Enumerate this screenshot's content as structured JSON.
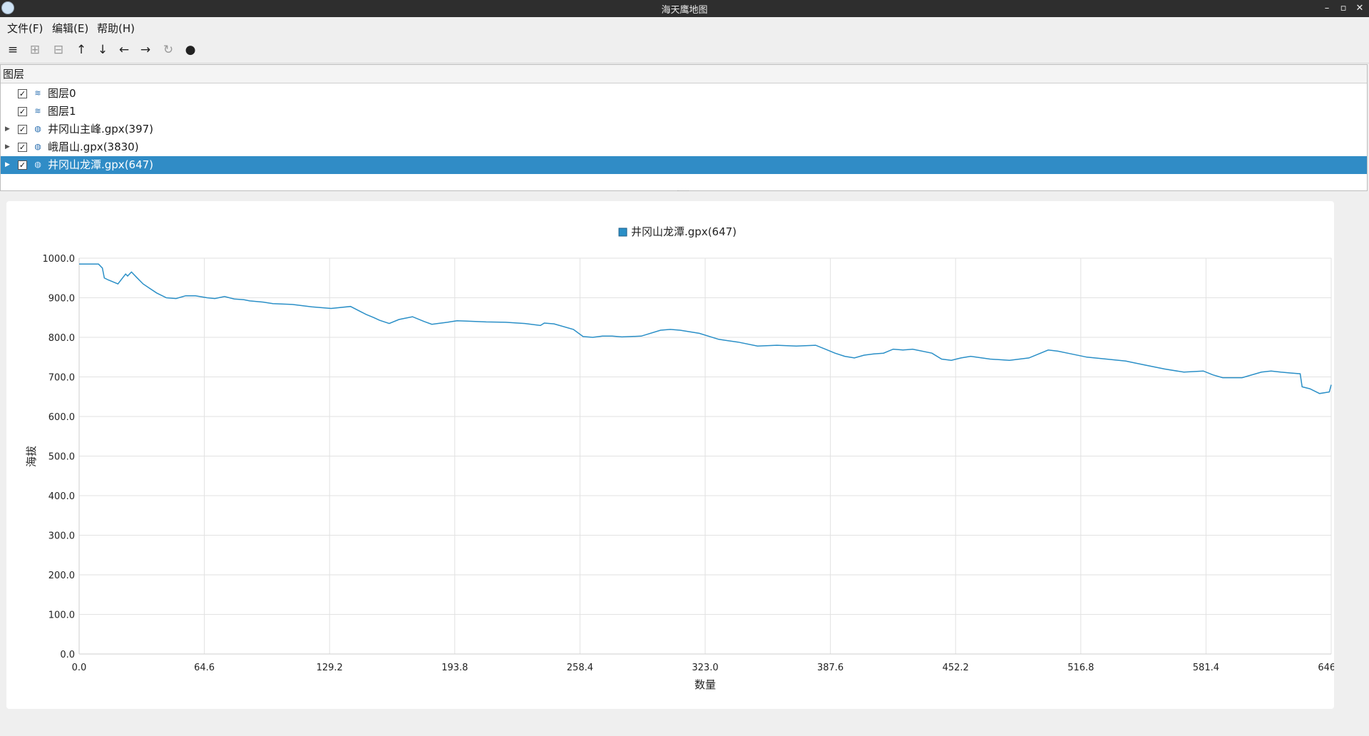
{
  "window": {
    "title": "海天鹰地图",
    "minimize": "–",
    "maximize": "▫",
    "close": "✕"
  },
  "menu": {
    "file": "文件(F)",
    "edit": "编辑(E)",
    "help": "帮助(H)"
  },
  "toolbar": {
    "menu_glyph": "≡",
    "add_glyph": "⊞",
    "remove_glyph": "⊟",
    "up_glyph": "↑",
    "down_glyph": "↓",
    "left_glyph": "←",
    "right_glyph": "→",
    "refresh_glyph": "↻",
    "dot_glyph": "●"
  },
  "layers": {
    "header": "图层",
    "items": [
      {
        "label": "图层0",
        "checked": true,
        "expandable": false,
        "icon": "layer-stack-icon"
      },
      {
        "label": "图层1",
        "checked": true,
        "expandable": false,
        "icon": "layer-stack-icon"
      },
      {
        "label": "井冈山主峰.gpx(397)",
        "checked": true,
        "expandable": true,
        "icon": "track-globe-icon"
      },
      {
        "label": "峨眉山.gpx(3830)",
        "checked": true,
        "expandable": true,
        "icon": "track-globe-icon"
      },
      {
        "label": "井冈山龙潭.gpx(647)",
        "checked": true,
        "expandable": true,
        "icon": "track-globe-icon",
        "selected": true
      }
    ]
  },
  "chart_data": {
    "type": "line",
    "legend_position": "top-center",
    "grid": true,
    "xlabel": "数量",
    "ylabel": "海拔",
    "xlim": [
      0,
      646
    ],
    "ylim": [
      0,
      1000
    ],
    "x_ticks": [
      "0.0",
      "64.6",
      "129.2",
      "193.8",
      "258.4",
      "323.0",
      "387.6",
      "452.2",
      "516.8",
      "581.4",
      "646.0"
    ],
    "y_ticks": [
      "0.0",
      "100.0",
      "200.0",
      "300.0",
      "400.0",
      "500.0",
      "600.0",
      "700.0",
      "800.0",
      "900.0",
      "1000.0"
    ],
    "series_color": "#2a8fc7",
    "series": [
      {
        "name": "井冈山龙潭.gpx(647)",
        "x": [
          0,
          10,
          12,
          13,
          15,
          20,
          24,
          25,
          27,
          30,
          33,
          36,
          40,
          45,
          50,
          55,
          60,
          66,
          70,
          75,
          80,
          85,
          88,
          95,
          100,
          110,
          120,
          130,
          140,
          148,
          152,
          155,
          160,
          165,
          172,
          178,
          182,
          185,
          190,
          195,
          200,
          210,
          220,
          230,
          238,
          240,
          245,
          255,
          260,
          265,
          270,
          275,
          280,
          290,
          300,
          305,
          310,
          320,
          330,
          340,
          350,
          360,
          370,
          380,
          385,
          390,
          395,
          400,
          405,
          410,
          415,
          420,
          425,
          430,
          440,
          445,
          450,
          455,
          460,
          470,
          480,
          490,
          500,
          505,
          510,
          520,
          530,
          540,
          550,
          560,
          570,
          580,
          585,
          590,
          600,
          610,
          615,
          620,
          625,
          630,
          631,
          635,
          640,
          645,
          646
        ],
        "y": [
          985,
          985,
          975,
          950,
          945,
          935,
          960,
          955,
          965,
          950,
          935,
          925,
          912,
          900,
          898,
          905,
          905,
          900,
          898,
          903,
          897,
          895,
          892,
          889,
          885,
          883,
          877,
          873,
          878,
          858,
          850,
          843,
          835,
          845,
          852,
          840,
          833,
          835,
          838,
          842,
          841,
          839,
          838,
          835,
          830,
          836,
          834,
          820,
          802,
          800,
          803,
          803,
          801,
          803,
          818,
          820,
          818,
          810,
          795,
          788,
          778,
          780,
          778,
          780,
          770,
          760,
          752,
          748,
          755,
          758,
          760,
          770,
          768,
          770,
          760,
          745,
          742,
          748,
          752,
          745,
          742,
          748,
          768,
          765,
          760,
          750,
          745,
          740,
          730,
          720,
          712,
          715,
          705,
          698,
          698,
          712,
          715,
          712,
          710,
          708,
          675,
          670,
          658,
          662,
          680
        ]
      }
    ]
  }
}
